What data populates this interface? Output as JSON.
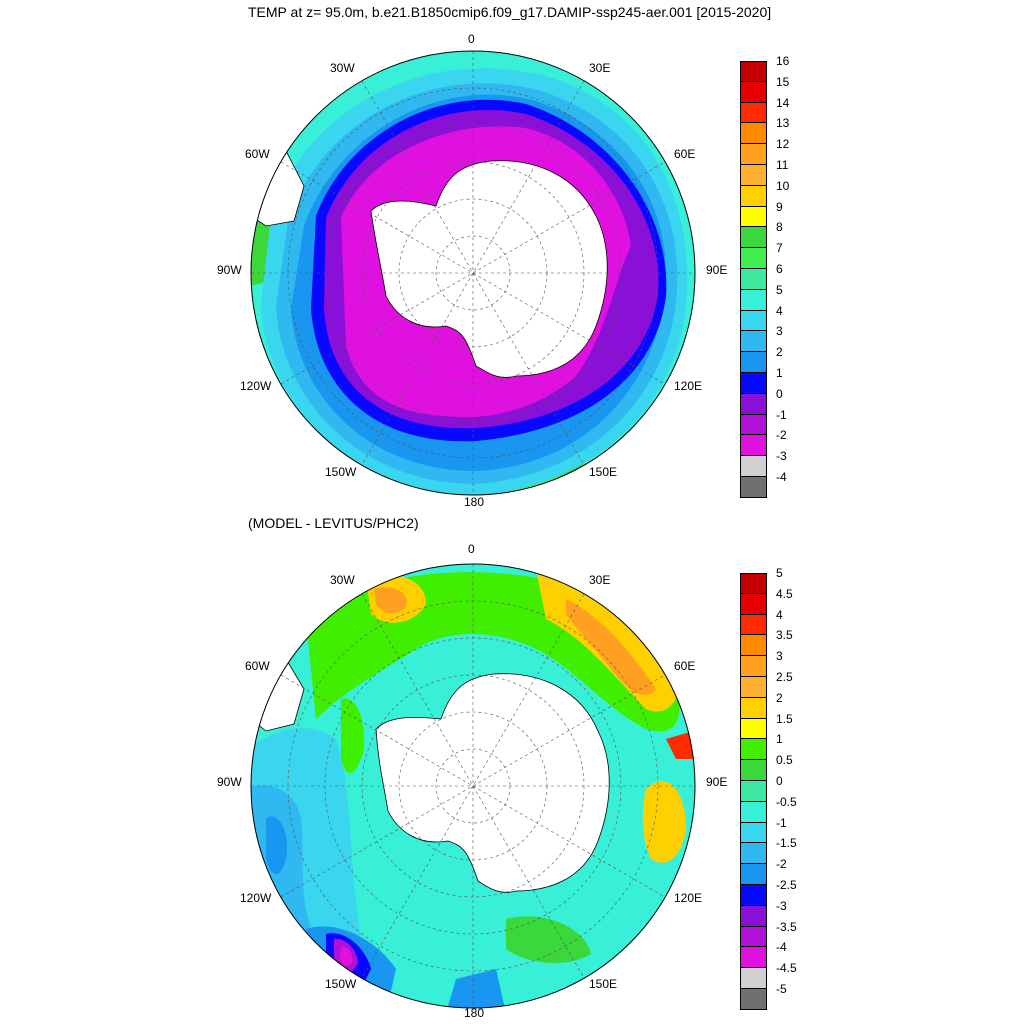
{
  "title": "TEMP at z=  95.0m, b.e21.B1850cmip6.f09_g17.DAMIP-ssp245-aer.001 [2015-2020]",
  "subtitle": "(MODEL - LEVITUS/PHC2)",
  "lon_labels": {
    "top": "0",
    "top_right": "30E",
    "right_upper": "60E",
    "right": "90E",
    "right_lower": "120E",
    "bottom_right": "150E",
    "bottom": "180",
    "bottom_left": "150W",
    "left_lower": "120W",
    "left": "90W",
    "left_upper": "60W",
    "top_left": "30W"
  },
  "colorbar_top": {
    "labels": [
      "16",
      "15",
      "14",
      "13",
      "12",
      "11",
      "10",
      "9",
      "8",
      "7",
      "6",
      "5",
      "4",
      "3",
      "2",
      "1",
      "0",
      "-1",
      "-2",
      "-3",
      "-4"
    ],
    "colors": [
      "#c40000",
      "#e60000",
      "#ff2a00",
      "#ff8a00",
      "#ffa020",
      "#ffb030",
      "#ffd000",
      "#ffff00",
      "#3ad83a",
      "#40ee50",
      "#3ee89c",
      "#38f0d8",
      "#3ad6f0",
      "#30b8f0",
      "#1896f0",
      "#0808ff",
      "#8a10d8",
      "#b010d8",
      "#e010e0",
      "#d0d0d0",
      "#707070"
    ]
  },
  "colorbar_bottom": {
    "labels": [
      "5",
      "4.5",
      "4",
      "3.5",
      "3",
      "2.5",
      "2",
      "1.5",
      "1",
      "0.5",
      "0",
      "-0.5",
      "-1",
      "-1.5",
      "-2",
      "-2.5",
      "-3",
      "-3.5",
      "-4",
      "-4.5",
      "-5"
    ],
    "colors": [
      "#c40000",
      "#e60000",
      "#ff2a00",
      "#ff8a00",
      "#ffa020",
      "#ffb030",
      "#ffd000",
      "#ffff00",
      "#40ee00",
      "#3ad83a",
      "#3ee8a0",
      "#38f0d8",
      "#3ad6f0",
      "#30b8f0",
      "#1896f0",
      "#0808ff",
      "#8a10d8",
      "#b010d8",
      "#e010e0",
      "#d0d0d0",
      "#707070"
    ]
  }
}
